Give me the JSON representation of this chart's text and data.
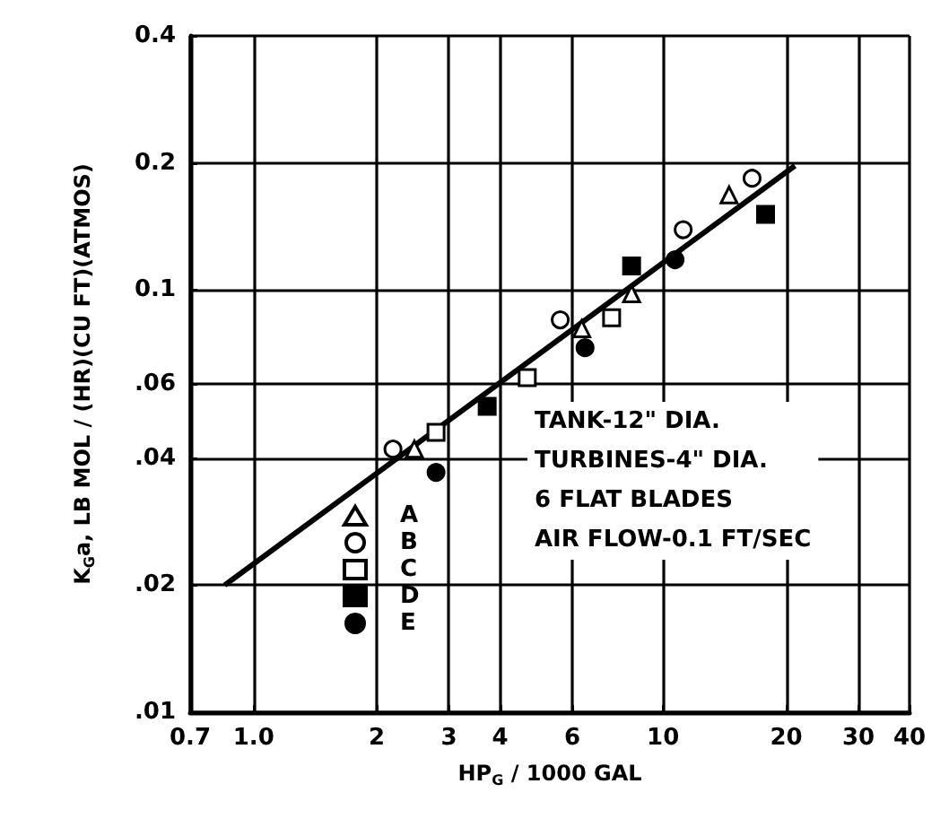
{
  "chart_data": {
    "type": "scatter",
    "xlabel": "HP$_{G}$ / 1000 GAL",
    "ylabel": "K$_{G}$a, LB MOL / (HR)(CU FT)(ATMOS)",
    "log": "xy",
    "grid": true,
    "legend": "bottom left",
    "xlim": [
      0.7,
      40
    ],
    "ylim": [
      0.01,
      0.4
    ],
    "xticks": [
      0.7,
      {
        "value": 1,
        "label": "1.0"
      },
      2,
      3,
      4,
      6,
      10,
      20,
      30,
      40
    ],
    "yticks": [
      {
        "value": 0.01,
        "label": ".01"
      },
      {
        "value": 0.02,
        "label": ".02"
      },
      {
        "value": 0.04,
        "label": ".04"
      },
      {
        "value": 0.06,
        "label": ".06"
      },
      0.1,
      0.2,
      0.4
    ],
    "annotations": [
      "TANK-12\" DIA.",
      "TURBINES-4\" DIA.",
      "6 FLAT BLADES",
      "AIR FLOW-0.1 FT/SEC"
    ],
    "series": [
      {
        "name": "A",
        "color": "#ffffff",
        "marker": "triangle",
        "x": [
          2.47,
          6.33,
          8.38,
          14.5
        ],
        "values": [
          0.042,
          0.081,
          0.098,
          0.168
        ]
      },
      {
        "name": "B",
        "color": "#ffffff",
        "marker": "circle",
        "x": [
          2.19,
          5.61,
          11.2,
          16.5
        ],
        "values": [
          0.042,
          0.085,
          0.139,
          0.184
        ]
      },
      {
        "name": "C",
        "color": "#ffffff",
        "marker": "square",
        "x": [
          2.79,
          4.66,
          7.49
        ],
        "values": [
          0.046,
          0.062,
          0.086
        ]
      },
      {
        "name": "D",
        "color": "#000000",
        "marker": "square",
        "x": [
          3.72,
          8.38,
          17.8
        ],
        "values": [
          0.053,
          0.114,
          0.151
        ]
      },
      {
        "name": "E",
        "color": "#000000",
        "marker": "circle",
        "x": [
          2.79,
          6.45,
          10.7
        ],
        "values": [
          0.037,
          0.073,
          0.118
        ]
      },
      {
        "type": "line",
        "color": "#000000",
        "marker": "none",
        "line_style": "solid",
        "x": [
          0.85,
          21
        ],
        "values": [
          0.02,
          0.197
        ]
      }
    ]
  }
}
